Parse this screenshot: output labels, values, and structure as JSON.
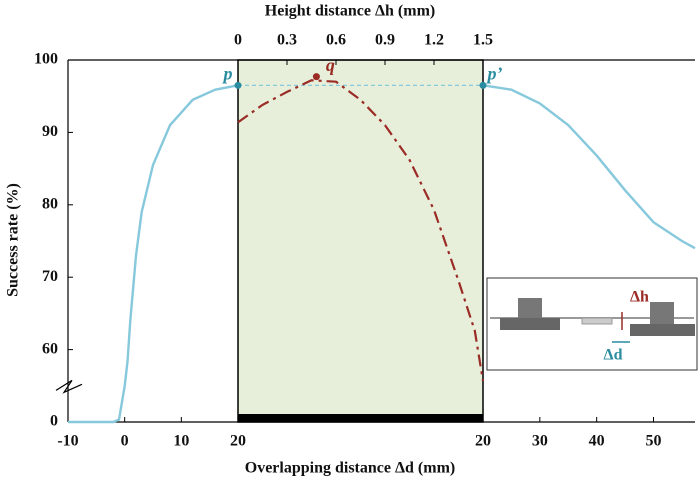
{
  "chart_data": {
    "type": "line",
    "ylabel": "Success rate (%)",
    "xlabel": "Overlapping distance Δd (mm)",
    "x2label": "Height distance Δh (mm)",
    "ylim": [
      0,
      100
    ],
    "yticks": [
      0,
      60,
      70,
      80,
      90,
      100
    ],
    "axis_break": true,
    "panels": [
      {
        "xlim": [
          -10,
          20
        ],
        "xticks": [
          -10,
          0,
          10,
          20
        ],
        "axis": "bottom",
        "series": [
          {
            "color": "#86c8dc",
            "style": "solid",
            "x": [
              -10,
              -5,
              -2,
              -1,
              0,
              0.5,
              1,
              2,
              3,
              5,
              8,
              12,
              16,
              20
            ],
            "values": [
              0,
              0,
              0,
              2,
              30,
              50,
              64,
              73,
              79,
              85.5,
              91,
              94.5,
              95.9,
              96.5
            ]
          }
        ]
      },
      {
        "xlim": [
          0,
          1.5
        ],
        "xticks": [
          0,
          0.3,
          0.6,
          0.9,
          1.2,
          1.5
        ],
        "axis": "top",
        "shade": "#e7efdb",
        "series": [
          {
            "color": "#9b2b25",
            "style": "dashdot",
            "x": [
              0,
              0.15,
              0.3,
              0.45,
              0.6,
              0.75,
              0.9,
              1.05,
              1.2,
              1.35,
              1.45,
              1.5
            ],
            "values": [
              91.4,
              93.8,
              95.6,
              97.2,
              97,
              94.5,
              91,
              86.2,
              79.3,
              69.5,
              62.6,
              34
            ]
          }
        ],
        "reference_line": {
          "y": 96.5,
          "color": "#86c8dc"
        }
      },
      {
        "xlim": [
          20,
          57.3
        ],
        "xticks": [
          20,
          30,
          40,
          50
        ],
        "axis": "bottom",
        "series": [
          {
            "color": "#86c8dc",
            "style": "solid",
            "x": [
              20,
              25,
              30,
              35,
              40,
              45,
              50,
              55,
              57.3
            ],
            "values": [
              96.5,
              95.9,
              94,
              91,
              86.8,
              82,
              77.6,
              75,
              74
            ]
          }
        ]
      }
    ],
    "annotations": [
      {
        "text": "p",
        "panel": 0,
        "x": 20,
        "y": 96.5,
        "color": "#2a8ca0"
      },
      {
        "text": "q",
        "panel": 1,
        "x": 0.48,
        "y": 97.7,
        "color": "#9b2b25"
      },
      {
        "text": "p’",
        "panel": 2,
        "x": 20,
        "y": 96.5,
        "color": "#2a8ca0"
      }
    ],
    "inset": {
      "labels": [
        "Δh",
        "Δd"
      ]
    }
  }
}
